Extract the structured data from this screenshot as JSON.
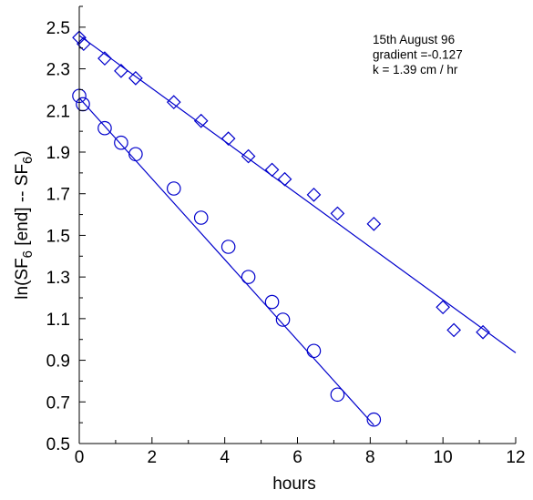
{
  "chart_data": {
    "type": "scatter",
    "xlabel": "hours",
    "ylabel": {
      "parts": [
        {
          "text": "ln(SF",
          "sub": false
        },
        {
          "text": "6",
          "sub": true
        },
        {
          "text": " [end] -- SF",
          "sub": false
        },
        {
          "text": "6",
          "sub": true
        },
        {
          "text": ")",
          "sub": false
        }
      ]
    },
    "xlim": [
      0,
      12
    ],
    "ylim": [
      0.5,
      2.6
    ],
    "xticks": [
      0,
      2,
      4,
      6,
      8,
      10,
      12
    ],
    "yticks": [
      0.5,
      0.7,
      0.9,
      1.1,
      1.3,
      1.5,
      1.7,
      1.9,
      2.1,
      2.3,
      2.5
    ],
    "xtick_labels": [
      "0",
      "2",
      "4",
      "6",
      "8",
      "10",
      "12"
    ],
    "ytick_labels": [
      "0.5",
      "0.7",
      "0.9",
      "1.1",
      "1.3",
      "1.5",
      "1.7",
      "1.9",
      "2.1",
      "2.3",
      "2.5"
    ],
    "grid": false,
    "colors": {
      "series": "#0000cc",
      "axes": "#000000"
    },
    "annotation": [
      "15th August  96",
      "gradient =-0.127",
      "k = 1.39 cm / hr"
    ],
    "series": [
      {
        "marker": "diamond",
        "points": [
          [
            0.0,
            2.45
          ],
          [
            0.12,
            2.42
          ],
          [
            0.7,
            2.35
          ],
          [
            1.15,
            2.29
          ],
          [
            1.55,
            2.255
          ],
          [
            2.6,
            2.14
          ],
          [
            3.35,
            2.05
          ],
          [
            4.1,
            1.965
          ],
          [
            4.65,
            1.88
          ],
          [
            5.3,
            1.815
          ],
          [
            5.65,
            1.77
          ],
          [
            6.45,
            1.695
          ],
          [
            7.1,
            1.605
          ],
          [
            8.1,
            1.555
          ],
          [
            10.0,
            1.155
          ],
          [
            10.3,
            1.045
          ],
          [
            11.1,
            1.035
          ]
        ],
        "fit": {
          "slope": -0.127,
          "intercept": 2.46,
          "x_range": [
            0,
            12
          ]
        }
      },
      {
        "marker": "circle",
        "points": [
          [
            0.0,
            2.17
          ],
          [
            0.1,
            2.13
          ],
          [
            0.7,
            2.015
          ],
          [
            1.15,
            1.945
          ],
          [
            1.55,
            1.89
          ],
          [
            2.6,
            1.725
          ],
          [
            3.35,
            1.585
          ],
          [
            4.1,
            1.445
          ],
          [
            4.65,
            1.3
          ],
          [
            5.3,
            1.18
          ],
          [
            5.6,
            1.095
          ],
          [
            6.45,
            0.945
          ],
          [
            7.1,
            0.735
          ],
          [
            8.1,
            0.615
          ]
        ],
        "fit": {
          "slope": -0.194,
          "intercept": 2.16,
          "x_range": [
            0,
            8.1
          ]
        }
      }
    ]
  }
}
